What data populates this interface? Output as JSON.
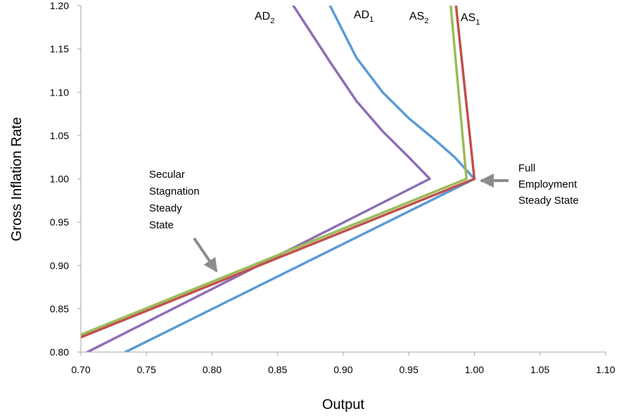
{
  "chart_data": {
    "type": "line",
    "xlabel": "Output",
    "ylabel": "Gross Inflation Rate",
    "xlim": [
      0.7,
      1.1
    ],
    "ylim": [
      0.8,
      1.2
    ],
    "x_ticks": [
      0.7,
      0.75,
      0.8,
      0.85,
      0.9,
      0.95,
      1.0,
      1.05,
      1.1
    ],
    "y_ticks": [
      0.8,
      0.85,
      0.9,
      0.95,
      1.0,
      1.05,
      1.1,
      1.15,
      1.2
    ],
    "tick_decimals": 2,
    "grid": false,
    "series": [
      {
        "key": "ad1",
        "name": "AD",
        "subscript": "1",
        "color": "#5b9bd5",
        "points": [
          [
            0.734,
            0.8
          ],
          [
            1.0,
            1.0
          ],
          [
            0.985,
            1.025
          ],
          [
            0.97,
            1.045
          ],
          [
            0.95,
            1.07
          ],
          [
            0.93,
            1.1
          ],
          [
            0.91,
            1.14
          ],
          [
            0.89,
            1.2
          ]
        ]
      },
      {
        "key": "ad2",
        "name": "AD",
        "subscript": "2",
        "color": "#8e6fb5",
        "points": [
          [
            0.705,
            0.8
          ],
          [
            0.966,
            1.0
          ],
          [
            0.95,
            1.025
          ],
          [
            0.93,
            1.055
          ],
          [
            0.91,
            1.09
          ],
          [
            0.89,
            1.135
          ],
          [
            0.862,
            1.2
          ]
        ]
      },
      {
        "key": "as2",
        "name": "AS",
        "subscript": "2",
        "color": "#9bbb59",
        "points": [
          [
            0.7,
            0.82
          ],
          [
            0.994,
            1.0
          ],
          [
            0.982,
            1.2
          ]
        ]
      },
      {
        "key": "as1",
        "name": "AS",
        "subscript": "1",
        "color": "#c0504d",
        "points": [
          [
            0.7,
            0.817
          ],
          [
            1.0,
            1.0
          ],
          [
            0.986,
            1.2
          ]
        ]
      }
    ],
    "annotations": [
      {
        "key": "secular",
        "lines": [
          "Secular",
          "Stagnation",
          "Steady",
          "State"
        ],
        "arrow_color": "#8c8c8c"
      },
      {
        "key": "full",
        "lines": [
          "Full",
          "Employment",
          "Steady State"
        ],
        "arrow_color": "#8c8c8c"
      }
    ]
  }
}
